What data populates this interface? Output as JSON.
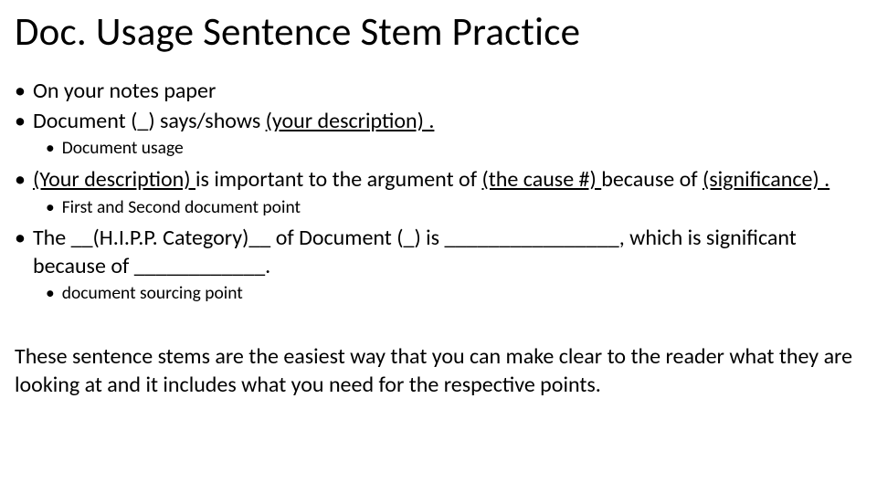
{
  "title": "Doc. Usage Sentence Stem Practice",
  "bullets": {
    "b1": "On your notes paper",
    "b2_pre": "Document (_) says/shows ",
    "b2_u": "        (your description)                       .",
    "b2_sub": "Document usage",
    "b3_u1": "        (Your description)      ",
    "b3_mid": "is important to the argument of ",
    "b3_u2": "    (the cause #)    ",
    "b3_break": " because of ",
    "b3_u3": "    (significance)       .",
    "b3_sub": "First and Second document point",
    "b4": "The __(H.I.P.P. Category)__ of Document (_) is ________________, which is significant because of ____________.",
    "b4_sub": "document sourcing point"
  },
  "body": "These sentence stems are the easiest way that you can make clear to the reader what they are looking at and it includes what you need for the respective points.",
  "colors": {
    "text": "#000000",
    "background": "#ffffff"
  },
  "fonts": {
    "title_size": 43,
    "bullet_size": 24,
    "subbullet_size": 19.5,
    "body_size": 24
  }
}
